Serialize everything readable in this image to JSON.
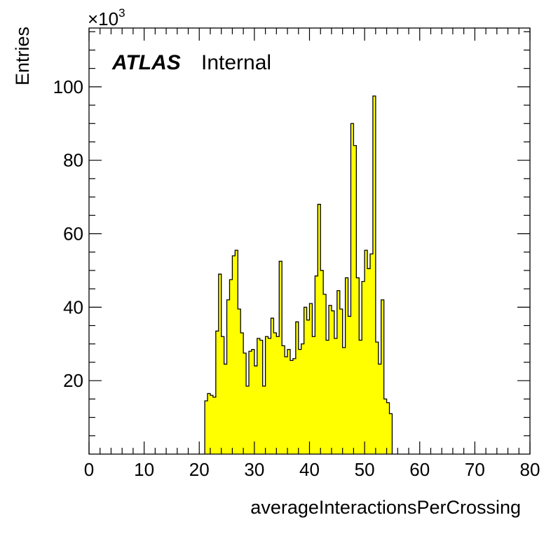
{
  "chart_data": {
    "type": "bar",
    "title": "",
    "xlabel": "averageInteractionsPerCrossing",
    "ylabel": "Entries",
    "y_multiplier_label": "×10",
    "y_multiplier_exponent": "3",
    "xlim": [
      0,
      80
    ],
    "ylim": [
      0,
      116
    ],
    "x_ticks": [
      0,
      10,
      20,
      30,
      40,
      50,
      60,
      70,
      80
    ],
    "y_ticks": [
      20,
      40,
      60,
      80,
      100
    ],
    "bin_width": 0.5,
    "bin_start": 21.0,
    "fill_color": "#ffff00",
    "line_color": "#000000",
    "grid": false,
    "legend": "none",
    "annotation": {
      "experiment": "ATLAS",
      "status": "Internal"
    },
    "values": [
      14.5,
      16.5,
      16,
      15.5,
      33.5,
      49,
      32,
      24.5,
      42,
      47.5,
      54,
      55.5,
      39.5,
      33,
      27.5,
      18.5,
      28,
      28.5,
      24,
      31.5,
      31,
      18.5,
      32,
      31.5,
      37,
      33,
      32,
      52.5,
      29.5,
      26.5,
      28.5,
      25.5,
      26,
      36,
      28.5,
      30,
      40,
      36.5,
      41,
      32,
      48.5,
      68,
      50,
      43.5,
      31,
      40.5,
      39,
      31.5,
      44.5,
      39.5,
      29,
      48,
      37.5,
      90,
      84,
      48,
      31,
      47,
      55.5,
      50.5,
      54.5,
      97.5,
      30.5,
      24.5,
      42,
      15,
      14,
      11
    ]
  }
}
